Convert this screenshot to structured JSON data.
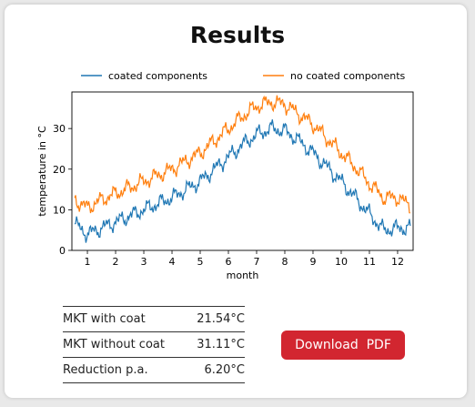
{
  "page": {
    "title": "Results"
  },
  "chart_data": {
    "type": "line",
    "xlabel": "month",
    "ylabel": "temperature in °C",
    "xlim": [
      0.45,
      12.55
    ],
    "ylim": [
      0,
      39
    ],
    "xticks": [
      1,
      2,
      3,
      4,
      5,
      6,
      7,
      8,
      9,
      10,
      11,
      12
    ],
    "yticks": [
      0,
      10,
      20,
      30
    ],
    "legend_position": "top",
    "x": [
      0.55,
      1,
      1.5,
      2,
      2.5,
      3,
      3.5,
      4,
      4.5,
      5,
      5.5,
      6,
      6.5,
      7,
      7.5,
      8,
      8.5,
      9,
      9.5,
      10,
      10.5,
      11,
      11.5,
      12,
      12.45
    ],
    "series": [
      {
        "name": "coated components",
        "color": "#1f77b4",
        "values": [
          6.5,
          4,
          5.5,
          7,
          8.5,
          10,
          11.5,
          13,
          15,
          17,
          20,
          23,
          26,
          28.5,
          30,
          29.5,
          27,
          24,
          20.5,
          17,
          13,
          9,
          5,
          5.5,
          5.5
        ]
      },
      {
        "name": "no coated components",
        "color": "#ff7f0e",
        "values": [
          12.5,
          10.5,
          12.5,
          14,
          15.5,
          17,
          18.5,
          20,
          22,
          24,
          27,
          30,
          33,
          35.5,
          36.5,
          36,
          33.5,
          31,
          27.5,
          24,
          20.5,
          16.5,
          13,
          13,
          11
        ]
      }
    ]
  },
  "stats": [
    {
      "label": "MKT with coat",
      "value": "21.54°C"
    },
    {
      "label": "MKT without coat",
      "value": "31.11°C"
    },
    {
      "label": "Reduction p.a.",
      "value": "6.20°C"
    }
  ],
  "download_button": {
    "label": "Download  PDF"
  },
  "colors": {
    "button": "#d22630",
    "series_coated": "#1f77b4",
    "series_uncoated": "#ff7f0e"
  }
}
